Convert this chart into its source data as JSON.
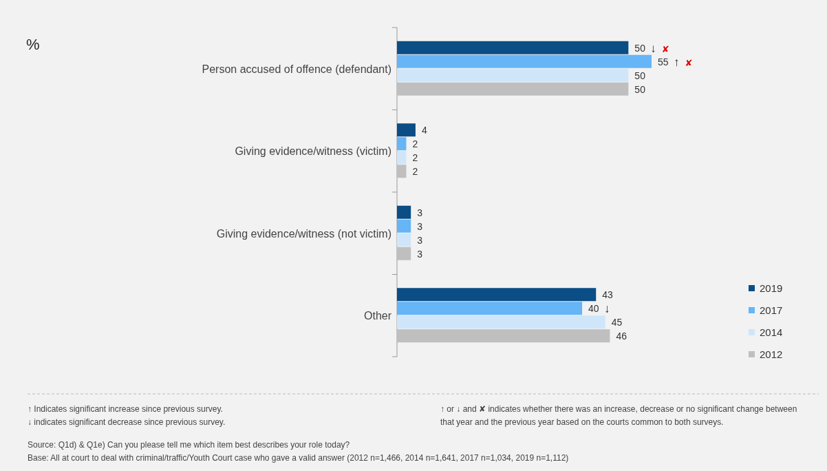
{
  "chart_data": {
    "type": "bar",
    "orientation": "horizontal",
    "data_labels": true,
    "legend": "bottom right",
    "categories": [
      "Person accused of offence (defendant)",
      "Giving evidence/witness (victim)",
      "Giving evidence/witness (not victim)",
      "Other"
    ],
    "series": [
      {
        "name": "2019",
        "color": "#0b4d85",
        "values": [
          50,
          4,
          3,
          43
        ]
      },
      {
        "name": "2017",
        "color": "#66b5f6",
        "values": [
          55,
          2,
          3,
          40
        ]
      },
      {
        "name": "2014",
        "color": "#cfe6fa",
        "values": [
          50,
          2,
          3,
          45
        ]
      },
      {
        "name": "2012",
        "color": "#bfbfbf",
        "values": [
          50,
          2,
          3,
          46
        ]
      }
    ],
    "annotations": [
      "%",
      {
        "text": "↓ ✘",
        "x": 50,
        "y": "Person accused of offence (defendant)"
      },
      {
        "text": "↑ ✘",
        "x": 55,
        "y": "Person accused of offence (defendant)"
      },
      {
        "text": "↓",
        "x": 40,
        "y": "Other"
      },
      "↑ Indicates significant increase since previous survey.",
      "↓ indicates significant decrease since previous survey.",
      "↑ or ↓ and ✘ indicates whether there was an increase, decrease or no significant change between that year and the previous year based on the courts common to both surveys.",
      "Source: Q1d) & Q1e) Can you please tell me which item best describes your role today?",
      "Base: All at court to deal with criminal/traffic/Youth Court case who gave a valid answer (2012 n=1,466, 2014 n=1,641, 2017 n=1,034, 2019 n=1,112)"
    ]
  }
}
